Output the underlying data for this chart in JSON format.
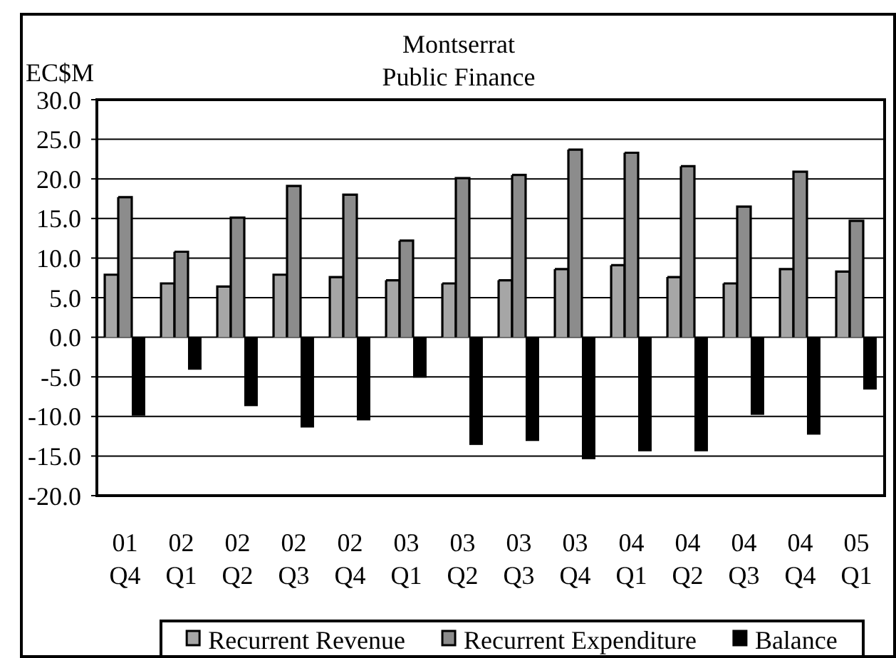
{
  "chart_data": {
    "type": "bar",
    "title": "Montserrat",
    "subtitle": "Public Finance",
    "ylabel": "EC$M",
    "categories": [
      "01 Q4",
      "02 Q1",
      "02 Q2",
      "02 Q3",
      "02 Q4",
      "03 Q1",
      "03 Q2",
      "03 Q3",
      "03 Q4",
      "04 Q1",
      "04 Q2",
      "04 Q3",
      "04 Q4",
      "05 Q1"
    ],
    "series": [
      {
        "name": "Recurrent Revenue",
        "color": "#a6a6a6",
        "values": [
          7.9,
          6.8,
          6.4,
          7.9,
          7.6,
          7.2,
          6.8,
          7.2,
          8.6,
          9.1,
          7.6,
          6.8,
          8.6,
          8.3
        ]
      },
      {
        "name": "Recurrent Expenditure",
        "color": "#8c8c8c",
        "values": [
          17.7,
          10.8,
          15.1,
          19.1,
          18.0,
          12.2,
          20.1,
          20.5,
          23.7,
          23.3,
          21.6,
          16.5,
          20.9,
          14.7
        ]
      },
      {
        "name": "Balance",
        "color": "#000000",
        "values": [
          -9.9,
          -4.1,
          -8.7,
          -11.4,
          -10.5,
          -5.1,
          -13.6,
          -13.1,
          -15.4,
          -14.4,
          -14.4,
          -9.8,
          -12.3,
          -6.6
        ]
      }
    ],
    "ylim": [
      -20,
      30
    ],
    "yticks": [
      {
        "value": -20,
        "label": "-20.0"
      },
      {
        "value": -15,
        "label": "-15.0"
      },
      {
        "value": -10,
        "label": "-10.0"
      },
      {
        "value": -5,
        "label": "-5.0"
      },
      {
        "value": 0,
        "label": "0.0"
      },
      {
        "value": 5,
        "label": "5.0"
      },
      {
        "value": 10,
        "label": "10.0"
      },
      {
        "value": 15,
        "label": "15.0"
      },
      {
        "value": 20,
        "label": "20.0"
      },
      {
        "value": 25,
        "label": "25.0"
      },
      {
        "value": 30,
        "label": "30.0"
      }
    ],
    "grid": "y",
    "legend": "bottom"
  }
}
